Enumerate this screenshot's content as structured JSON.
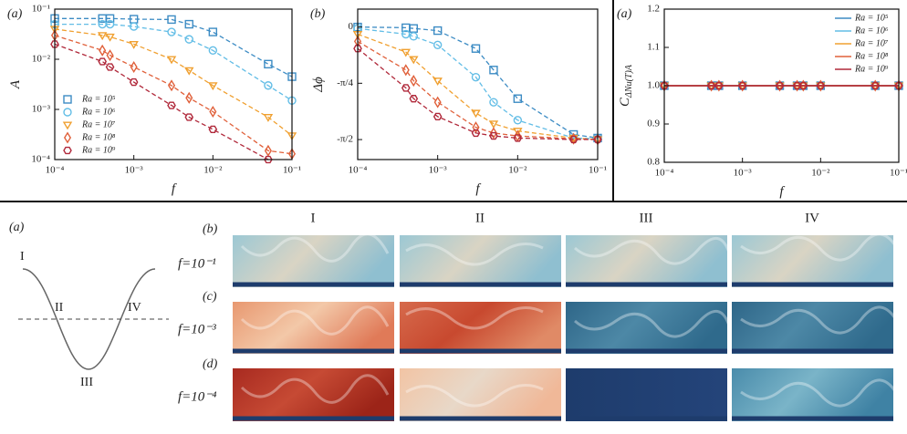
{
  "chart_data": [
    {
      "type": "line",
      "panel_label": "(a)",
      "x_label": "f",
      "y_label": "A",
      "xscale": "log",
      "yscale": "log",
      "linestyle": "dashed",
      "legend": "lower left",
      "xlim": [
        0.0001,
        0.1
      ],
      "ylim": [
        0.0001,
        0.1
      ],
      "xticks": [
        {
          "value": 0.0001,
          "label": "10⁻⁴"
        },
        {
          "value": 0.001,
          "label": "10⁻³"
        },
        {
          "value": 0.01,
          "label": "10⁻²"
        },
        {
          "value": 0.1,
          "label": "10⁻¹"
        }
      ],
      "yticks": [
        {
          "value": 0.0001,
          "label": "10⁻⁴"
        },
        {
          "value": 0.001,
          "label": "10⁻³"
        },
        {
          "value": 0.01,
          "label": "10⁻²"
        },
        {
          "value": 0.1,
          "label": "10⁻¹"
        }
      ],
      "x": [
        0.0001,
        0.0004,
        0.0005,
        0.001,
        0.003,
        0.005,
        0.01,
        0.05,
        0.1
      ],
      "series": [
        {
          "name": "Ra = 10⁵",
          "color": "#3d8cc4",
          "marker": "square",
          "values": [
            0.065,
            0.065,
            0.065,
            0.063,
            0.062,
            0.05,
            0.035,
            0.008,
            0.0045
          ]
        },
        {
          "name": "Ra = 10⁶",
          "color": "#62bde6",
          "marker": "circle",
          "values": [
            0.05,
            0.05,
            0.05,
            0.045,
            0.035,
            0.025,
            0.015,
            0.003,
            0.0015
          ]
        },
        {
          "name": "Ra = 10⁷",
          "color": "#f0a030",
          "marker": "triangle",
          "values": [
            0.04,
            0.03,
            0.028,
            0.02,
            0.01,
            0.006,
            0.003,
            0.0007,
            0.0003
          ]
        },
        {
          "name": "Ra = 10⁸",
          "color": "#e0603a",
          "marker": "diamond",
          "values": [
            0.03,
            0.015,
            0.012,
            0.007,
            0.003,
            0.0017,
            0.0009,
            0.00015,
            0.00013
          ]
        },
        {
          "name": "Ra = 10⁹",
          "color": "#b0283a",
          "marker": "hexagon",
          "values": [
            0.02,
            0.009,
            0.007,
            0.0035,
            0.0012,
            0.0007,
            0.0004,
            0.0001,
            null
          ]
        }
      ]
    },
    {
      "type": "line",
      "panel_label": "(b)",
      "x_label": "f",
      "y_label": "Δϕ",
      "xscale": "log",
      "yscale": "linear",
      "linestyle": "dashed",
      "xlim": [
        0.0001,
        0.1
      ],
      "ylim": [
        -1.85,
        0.25
      ],
      "xticks": [
        {
          "value": 0.0001,
          "label": "10⁻⁴"
        },
        {
          "value": 0.001,
          "label": "10⁻³"
        },
        {
          "value": 0.01,
          "label": "10⁻²"
        },
        {
          "value": 0.1,
          "label": "10⁻¹"
        }
      ],
      "yticks": [
        0,
        {
          "value": -0.785,
          "label": "-π/4"
        },
        {
          "value": -1.571,
          "label": "-π/2"
        }
      ],
      "x": [
        0.0001,
        0.0004,
        0.0005,
        0.001,
        0.003,
        0.005,
        0.01,
        0.05,
        0.1
      ],
      "series": [
        {
          "name": "Ra = 10⁵",
          "color": "#3d8cc4",
          "marker": "square",
          "values": [
            0,
            -0.01,
            -0.02,
            -0.05,
            -0.3,
            -0.6,
            -1.0,
            -1.5,
            -1.55
          ]
        },
        {
          "name": "Ra = 10⁶",
          "color": "#62bde6",
          "marker": "circle",
          "values": [
            -0.02,
            -0.1,
            -0.13,
            -0.25,
            -0.7,
            -1.05,
            -1.3,
            -1.55,
            -1.56
          ]
        },
        {
          "name": "Ra = 10⁷",
          "color": "#f0a030",
          "marker": "triangle",
          "values": [
            -0.1,
            -0.35,
            -0.45,
            -0.75,
            -1.2,
            -1.35,
            -1.45,
            -1.55,
            -1.57
          ]
        },
        {
          "name": "Ra = 10⁸",
          "color": "#e0603a",
          "marker": "diamond",
          "values": [
            -0.2,
            -0.6,
            -0.75,
            -1.05,
            -1.4,
            -1.48,
            -1.52,
            -1.56,
            -1.57
          ]
        },
        {
          "name": "Ra = 10⁹",
          "color": "#b0283a",
          "marker": "hexagon",
          "values": [
            -0.3,
            -0.85,
            -1.0,
            -1.25,
            -1.48,
            -1.52,
            -1.55,
            -1.57,
            -1.57
          ]
        }
      ]
    },
    {
      "type": "line",
      "panel_label": "(a)",
      "x_label": "f",
      "y_label": "C",
      "y_label_sub": "ΔNu(T)A",
      "xscale": "log",
      "yscale": "linear",
      "linestyle": "solid",
      "legend": "upper right",
      "xlim": [
        0.0001,
        0.1
      ],
      "ylim": [
        0.8,
        1.2
      ],
      "xticks": [
        {
          "value": 0.0001,
          "label": "10⁻⁴"
        },
        {
          "value": 0.001,
          "label": "10⁻³"
        },
        {
          "value": 0.01,
          "label": "10⁻²"
        },
        {
          "value": 0.1,
          "label": "10⁻¹"
        }
      ],
      "yticks": [
        0.8,
        0.9,
        {
          "value": 1,
          "label": "1.0"
        },
        1.1,
        1.2
      ],
      "x": [
        0.0001,
        0.0004,
        0.0005,
        0.001,
        0.003,
        0.005,
        0.006,
        0.01,
        0.05,
        0.1
      ],
      "series": [
        {
          "name": "Ra = 10⁵",
          "color": "#3d8cc4",
          "marker": "square",
          "values": [
            1,
            1,
            1,
            1,
            1,
            1,
            1,
            1,
            1,
            1
          ]
        },
        {
          "name": "Ra = 10⁶",
          "color": "#62bde6",
          "marker": "circle",
          "values": [
            1,
            1,
            1,
            1,
            1,
            1,
            1,
            1,
            1,
            1
          ]
        },
        {
          "name": "Ra = 10⁷",
          "color": "#f0a030",
          "marker": "triangle",
          "values": [
            1,
            1,
            1,
            1,
            1,
            1,
            1,
            1,
            1,
            1
          ]
        },
        {
          "name": "Ra = 10⁸",
          "color": "#e0603a",
          "marker": "diamond",
          "values": [
            1,
            1,
            1,
            1,
            1,
            1,
            1,
            1,
            1,
            1
          ]
        },
        {
          "name": "Ra = 10⁹",
          "color": "#b0283a",
          "marker": "hexagon",
          "values": [
            1,
            1,
            1,
            1,
            1,
            1,
            1,
            1,
            1,
            1
          ]
        }
      ]
    }
  ],
  "panel": {
    "schematic_label": "(a)",
    "phases": [
      "I",
      "II",
      "III",
      "IV"
    ],
    "columns": [
      "I",
      "II",
      "III",
      "IV"
    ],
    "rows": [
      {
        "label": "(b)",
        "f": "f=10⁻¹"
      },
      {
        "label": "(c)",
        "f": "f=10⁻³"
      },
      {
        "label": "(d)",
        "f": "f=10⁻⁴"
      }
    ]
  }
}
